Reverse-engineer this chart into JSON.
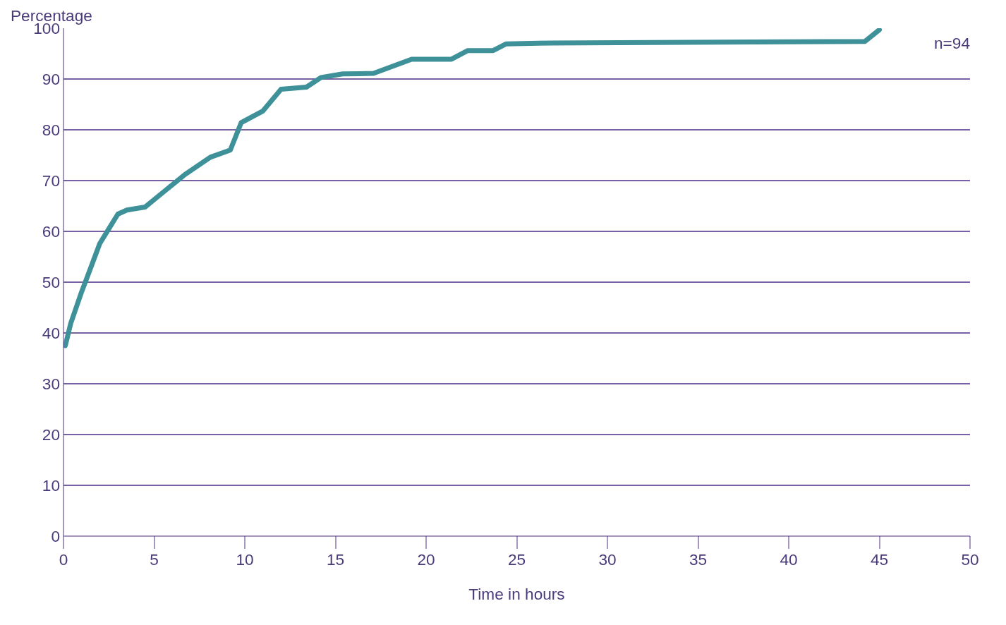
{
  "chart_data": {
    "type": "line",
    "ylabel": "Percentage",
    "xlabel": "Time in hours",
    "x": [
      0.1,
      0.4,
      1.0,
      1.5,
      2.0,
      2.5,
      3.0,
      3.5,
      4.5,
      5.6,
      6.7,
      8.1,
      9.2,
      9.8,
      11.0,
      12.0,
      13.4,
      14.2,
      15.4,
      17.1,
      19.2,
      21.4,
      22.3,
      23.7,
      24.4,
      26.9,
      44.2,
      45.0
    ],
    "series": [
      {
        "color": "#3f9199",
        "values": [
          37.5,
          41.9,
          48.1,
          52.8,
          57.6,
          60.5,
          63.4,
          64.2,
          64.8,
          68,
          71.2,
          74.6,
          76,
          81.4,
          83.7,
          88,
          88.4,
          90.3,
          91,
          91.1,
          93.9,
          93.9,
          95.6,
          95.6,
          96.9,
          97.1,
          97.4,
          99.7
        ]
      }
    ],
    "xlim": [
      0,
      50
    ],
    "ylim": [
      0,
      100
    ],
    "xticks": [
      0,
      5,
      10,
      15,
      20,
      25,
      30,
      35,
      40,
      45,
      50
    ],
    "yticks": [
      0,
      10,
      20,
      30,
      40,
      50,
      60,
      70,
      80,
      90,
      100
    ],
    "grid": "y",
    "marker": "none",
    "line_style": "solid",
    "annotations": [
      "n=94"
    ]
  }
}
